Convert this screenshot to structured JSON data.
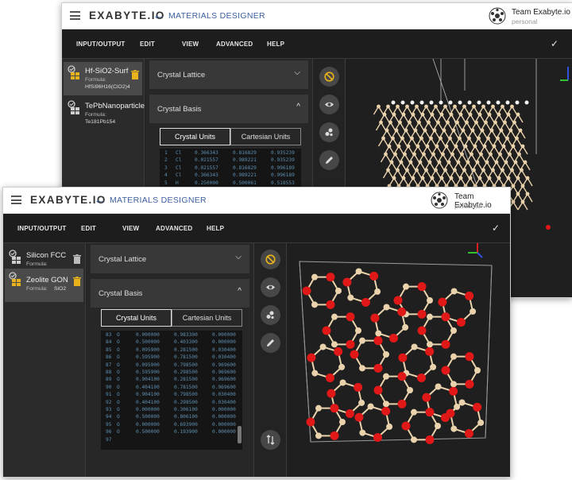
{
  "brand": "EXABYTE.IO",
  "app_title": "MATERIALS DESIGNER",
  "account": {
    "team": "Team Exabyte.io",
    "type": "personal"
  },
  "menu": [
    "INPUT/OUTPUT",
    "EDIT",
    "VIEW",
    "ADVANCED",
    "HELP"
  ],
  "back_window": {
    "materials": [
      {
        "name": "Hf-SiO2-Surf",
        "formula_label": "Formula:",
        "formula": "HfSi96H16(ClO2)4",
        "active": true
      },
      {
        "name": "TePbNanoparticle",
        "formula_label": "Formula:",
        "formula": "Te181Pb154",
        "active": false
      }
    ],
    "sections": {
      "lattice": "Crystal Lattice",
      "basis": "Crystal Basis"
    },
    "tabs": {
      "crystal": "Crystal Units",
      "cartesian": "Cartesian Units"
    },
    "rows": [
      {
        "idx": "1",
        "el": "Cl",
        "x": "0.366343",
        "y": "0.816829",
        "z": "0.935239"
      },
      {
        "idx": "2",
        "el": "Cl",
        "x": "0.021557",
        "y": "0.989221",
        "z": "0.935239"
      },
      {
        "idx": "3",
        "el": "Cl",
        "x": "0.021557",
        "y": "0.816829",
        "z": "0.996189"
      },
      {
        "idx": "4",
        "el": "Cl",
        "x": "0.366343",
        "y": "0.989221",
        "z": "0.996189"
      },
      {
        "idx": "5",
        "el": "H",
        "x": "0.250000",
        "y": "0.500061",
        "z": "0.518553"
      }
    ]
  },
  "front_window": {
    "materials": [
      {
        "name": "Silicon FCC",
        "formula_label": "Formula:",
        "formula": "Si",
        "active": false
      },
      {
        "name": "Zeolite GON",
        "formula_label": "Formula:",
        "formula": "SiO2",
        "active": true
      }
    ],
    "sections": {
      "lattice": "Crystal Lattice",
      "basis": "Crystal Basis"
    },
    "tabs": {
      "crystal": "Crystal Units",
      "cartesian": "Cartesian Units"
    },
    "rows": [
      {
        "idx": "83",
        "el": "O",
        "x": "0.000000",
        "y": "0.983300",
        "z": "0.000000"
      },
      {
        "idx": "84",
        "el": "O",
        "x": "0.500000",
        "y": "0.403300",
        "z": "0.000000"
      },
      {
        "idx": "85",
        "el": "O",
        "x": "0.095900",
        "y": "0.281500",
        "z": "0.030400"
      },
      {
        "idx": "86",
        "el": "O",
        "x": "0.595900",
        "y": "0.781500",
        "z": "0.030400"
      },
      {
        "idx": "87",
        "el": "O",
        "x": "0.095900",
        "y": "0.798500",
        "z": "0.969600"
      },
      {
        "idx": "88",
        "el": "O",
        "x": "0.595900",
        "y": "0.298500",
        "z": "0.969600"
      },
      {
        "idx": "89",
        "el": "O",
        "x": "0.904100",
        "y": "0.281500",
        "z": "0.969600"
      },
      {
        "idx": "90",
        "el": "O",
        "x": "0.404100",
        "y": "0.781500",
        "z": "0.969600"
      },
      {
        "idx": "91",
        "el": "O",
        "x": "0.904100",
        "y": "0.798500",
        "z": "0.030400"
      },
      {
        "idx": "92",
        "el": "O",
        "x": "0.404100",
        "y": "0.298500",
        "z": "0.030400"
      },
      {
        "idx": "93",
        "el": "O",
        "x": "0.000000",
        "y": "0.306100",
        "z": "0.000000"
      },
      {
        "idx": "94",
        "el": "O",
        "x": "0.500000",
        "y": "0.806100",
        "z": "0.000000"
      },
      {
        "idx": "95",
        "el": "O",
        "x": "0.000000",
        "y": "0.693900",
        "z": "0.000000"
      },
      {
        "idx": "96",
        "el": "O",
        "x": "0.500000",
        "y": "0.193900",
        "z": "0.000000"
      },
      {
        "idx": "97",
        "el": "",
        "x": "",
        "y": "",
        "z": ""
      }
    ]
  },
  "colors": {
    "accent": "#3c5fa0",
    "wireframe_icon": "#e8b21a",
    "oxygen": "#e01818",
    "silicon": "#ead3ac",
    "hydrogen": "#f2f2f2"
  },
  "icons": [
    "wireframe-icon",
    "eye-icon",
    "molecule-icon",
    "pencil-icon",
    "swap-icon",
    "trash-icon"
  ]
}
